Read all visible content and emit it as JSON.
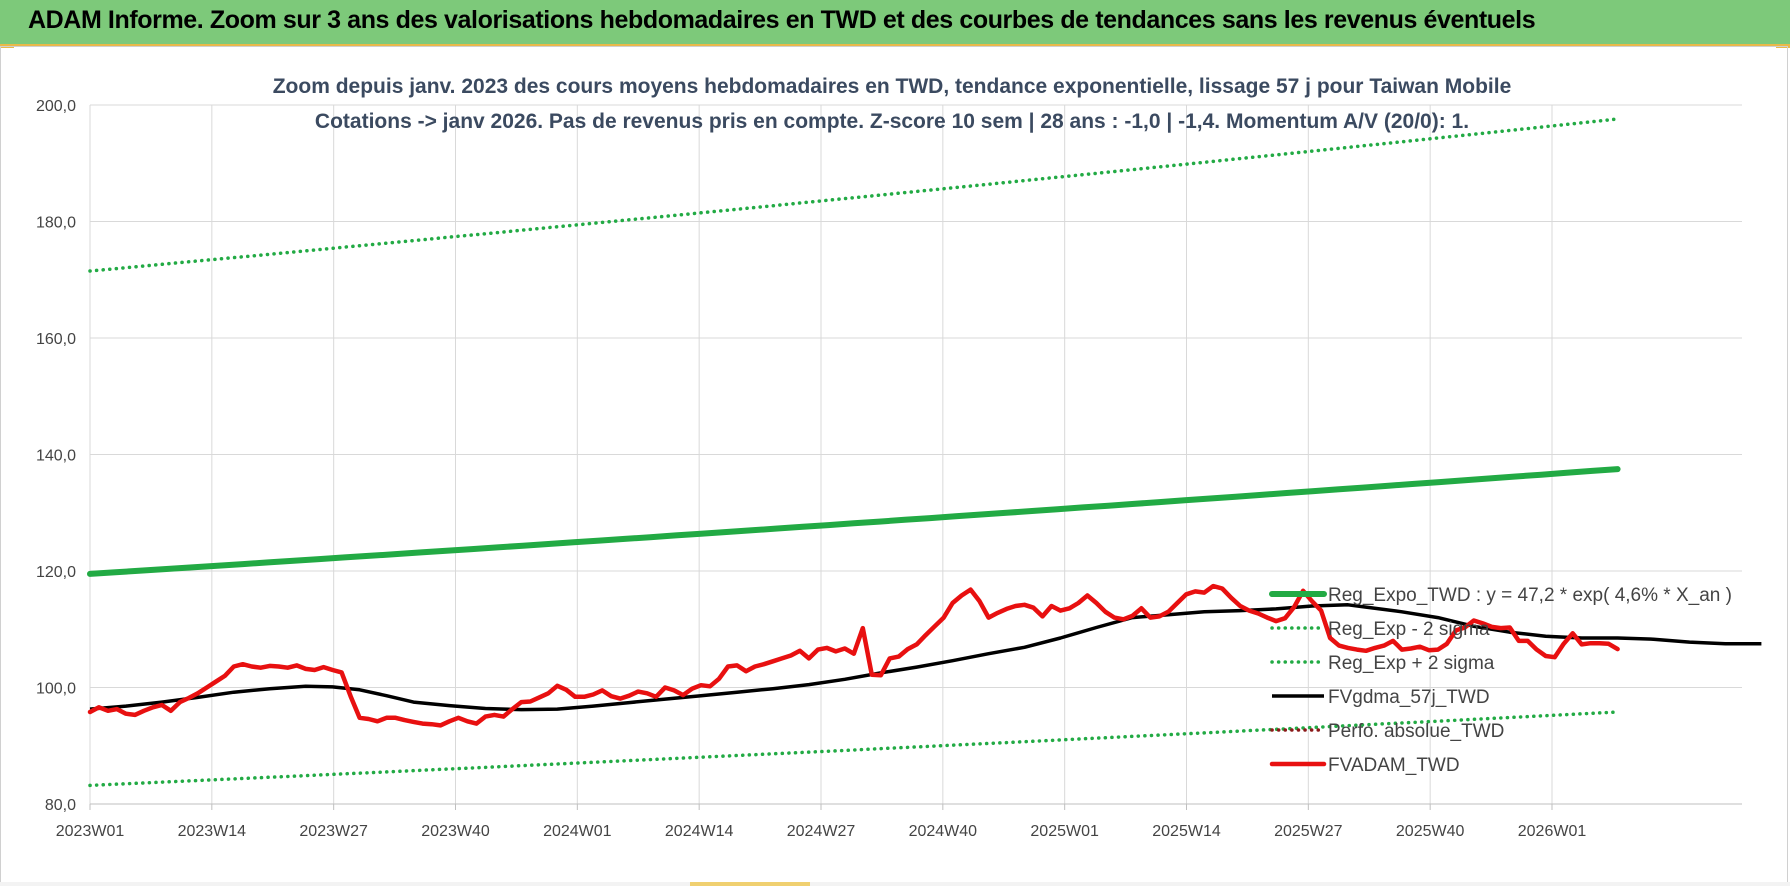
{
  "header": {
    "title": "ADAM Informe. Zoom sur 3 ans des valorisations hebdomadaires en TWD et des courbes de tendances sans les revenus éventuels"
  },
  "chart_data": {
    "type": "line",
    "title_lines": [
      "Zoom depuis janv. 2023 des cours moyens hebdomadaires en TWD, tendance exponentielle, lissage 57 j pour Taiwan Mobile",
      "Cotations -> janv 2026. Pas de revenus pris en compte. Z-score 10 sem | 28 ans : -1,0 | -1,4. Momentum A/V (20/0): 1."
    ],
    "xlabel": "",
    "ylabel": "",
    "ylim": [
      80,
      200
    ],
    "y_ticks": [
      "80,0",
      "100,0",
      "120,0",
      "140,0",
      "160,0",
      "180,0",
      "200,0"
    ],
    "x_ticks": [
      "2023W01",
      "2023W14",
      "2023W27",
      "2023W40",
      "2024W01",
      "2024W14",
      "2024W27",
      "2024W40",
      "2025W01",
      "2025W14",
      "2025W27",
      "2025W40",
      "2026W01"
    ],
    "x_range_weeks": [
      0,
      163
    ],
    "grid": true,
    "legend_position": "right",
    "series": [
      {
        "name": "Reg_Expo_TWD : y = 47,2 * exp( 4,6% *  X_an )",
        "color": "#22aa44",
        "style": "solid-thick",
        "trend": {
          "start": 119.5,
          "end": 137.5
        }
      },
      {
        "name": "Reg_Exp - 2 sigma",
        "color": "#22aa44",
        "style": "dotted",
        "trend": {
          "start": 83.2,
          "end": 95.8
        }
      },
      {
        "name": "Reg_Exp + 2 sigma",
        "color": "#22aa44",
        "style": "dotted",
        "trend": {
          "start": 171.5,
          "end": 197.6
        }
      },
      {
        "name": "FVgdma_57j_TWD",
        "color": "#000000",
        "style": "solid",
        "points": [
          [
            0,
            96.3
          ],
          [
            4,
            96.8
          ],
          [
            8,
            97.5
          ],
          [
            12,
            98.3
          ],
          [
            16,
            99.2
          ],
          [
            20,
            99.8
          ],
          [
            24,
            100.2
          ],
          [
            27,
            100.1
          ],
          [
            30,
            99.6
          ],
          [
            33,
            98.6
          ],
          [
            36,
            97.5
          ],
          [
            40,
            96.9
          ],
          [
            44,
            96.4
          ],
          [
            48,
            96.2
          ],
          [
            52,
            96.3
          ],
          [
            56,
            96.8
          ],
          [
            60,
            97.4
          ],
          [
            64,
            98.0
          ],
          [
            68,
            98.6
          ],
          [
            72,
            99.2
          ],
          [
            76,
            99.8
          ],
          [
            80,
            100.5
          ],
          [
            84,
            101.4
          ],
          [
            88,
            102.5
          ],
          [
            92,
            103.5
          ],
          [
            96,
            104.6
          ],
          [
            100,
            105.8
          ],
          [
            104,
            106.9
          ],
          [
            108,
            108.5
          ],
          [
            112,
            110.3
          ],
          [
            116,
            112.0
          ],
          [
            120,
            112.5
          ],
          [
            124,
            113.0
          ],
          [
            128,
            113.2
          ],
          [
            132,
            113.5
          ],
          [
            136,
            114.0
          ],
          [
            140,
            114.2
          ],
          [
            142,
            113.8
          ],
          [
            146,
            113.0
          ],
          [
            150,
            112.0
          ],
          [
            154,
            110.5
          ],
          [
            158,
            109.5
          ],
          [
            162,
            108.8
          ],
          [
            166,
            108.5
          ],
          [
            170,
            108.5
          ],
          [
            174,
            108.3
          ],
          [
            178,
            107.8
          ],
          [
            182,
            107.5
          ],
          [
            186,
            107.5
          ]
        ]
      },
      {
        "name": "Perfo. absolue_TWD",
        "color": "#8b1a1a",
        "style": "dotted",
        "points": []
      },
      {
        "name": "FVADAM_TWD",
        "color": "#e81010",
        "style": "solid-thick",
        "points": [
          [
            0,
            95.8
          ],
          [
            1,
            96.6
          ],
          [
            2,
            96.0
          ],
          [
            3,
            96.3
          ],
          [
            4,
            95.5
          ],
          [
            5,
            95.3
          ],
          [
            6,
            96.0
          ],
          [
            7,
            96.6
          ],
          [
            8,
            97.0
          ],
          [
            9,
            96.0
          ],
          [
            10,
            97.5
          ],
          [
            11,
            98.2
          ],
          [
            12,
            99.0
          ],
          [
            13,
            100.0
          ],
          [
            14,
            101.0
          ],
          [
            15,
            102.0
          ],
          [
            16,
            103.6
          ],
          [
            17,
            104.0
          ],
          [
            18,
            103.6
          ],
          [
            19,
            103.4
          ],
          [
            20,
            103.7
          ],
          [
            21,
            103.6
          ],
          [
            22,
            103.4
          ],
          [
            23,
            103.8
          ],
          [
            24,
            103.2
          ],
          [
            25,
            103.0
          ],
          [
            26,
            103.5
          ],
          [
            27,
            103.0
          ],
          [
            28,
            102.6
          ],
          [
            29,
            98.5
          ],
          [
            30,
            94.8
          ],
          [
            31,
            94.6
          ],
          [
            32,
            94.2
          ],
          [
            33,
            94.8
          ],
          [
            34,
            94.8
          ],
          [
            35,
            94.4
          ],
          [
            36,
            94.1
          ],
          [
            37,
            93.8
          ],
          [
            38,
            93.7
          ],
          [
            39,
            93.5
          ],
          [
            40,
            94.2
          ],
          [
            41,
            94.8
          ],
          [
            42,
            94.2
          ],
          [
            43,
            93.8
          ],
          [
            44,
            95.0
          ],
          [
            45,
            95.3
          ],
          [
            46,
            95.0
          ],
          [
            47,
            96.3
          ],
          [
            48,
            97.5
          ],
          [
            49,
            97.6
          ],
          [
            50,
            98.3
          ],
          [
            51,
            99.0
          ],
          [
            52,
            100.3
          ],
          [
            53,
            99.6
          ],
          [
            54,
            98.4
          ],
          [
            55,
            98.4
          ],
          [
            56,
            98.8
          ],
          [
            57,
            99.5
          ],
          [
            58,
            98.5
          ],
          [
            59,
            98.1
          ],
          [
            60,
            98.6
          ],
          [
            61,
            99.3
          ],
          [
            62,
            99.0
          ],
          [
            63,
            98.4
          ],
          [
            64,
            100.0
          ],
          [
            65,
            99.5
          ],
          [
            66,
            98.7
          ],
          [
            67,
            99.8
          ],
          [
            68,
            100.4
          ],
          [
            69,
            100.2
          ],
          [
            70,
            101.5
          ],
          [
            71,
            103.6
          ],
          [
            72,
            103.8
          ],
          [
            73,
            102.8
          ],
          [
            74,
            103.6
          ],
          [
            75,
            104.0
          ],
          [
            76,
            104.5
          ],
          [
            77,
            105.0
          ],
          [
            78,
            105.5
          ],
          [
            79,
            106.3
          ],
          [
            80,
            105.0
          ],
          [
            81,
            106.5
          ],
          [
            82,
            106.8
          ],
          [
            83,
            106.2
          ],
          [
            84,
            106.7
          ],
          [
            85,
            105.8
          ],
          [
            86,
            110.2
          ],
          [
            87,
            102.2
          ],
          [
            88,
            102.1
          ],
          [
            89,
            105.0
          ],
          [
            90,
            105.3
          ],
          [
            91,
            106.6
          ],
          [
            92,
            107.4
          ],
          [
            93,
            109.0
          ],
          [
            94,
            110.5
          ],
          [
            95,
            112.0
          ],
          [
            96,
            114.5
          ],
          [
            97,
            115.8
          ],
          [
            98,
            116.8
          ],
          [
            99,
            114.8
          ],
          [
            100,
            112.0
          ],
          [
            101,
            112.8
          ],
          [
            102,
            113.5
          ],
          [
            103,
            114.0
          ],
          [
            104,
            114.2
          ],
          [
            105,
            113.7
          ],
          [
            106,
            112.2
          ],
          [
            107,
            114.0
          ],
          [
            108,
            113.2
          ],
          [
            109,
            113.6
          ],
          [
            110,
            114.5
          ],
          [
            111,
            115.8
          ],
          [
            112,
            114.5
          ],
          [
            113,
            113.0
          ],
          [
            114,
            112.0
          ],
          [
            115,
            111.7
          ],
          [
            116,
            112.3
          ],
          [
            117,
            113.6
          ],
          [
            118,
            112.0
          ],
          [
            119,
            112.2
          ],
          [
            120,
            113.0
          ],
          [
            121,
            114.5
          ],
          [
            122,
            116.0
          ],
          [
            123,
            116.5
          ],
          [
            124,
            116.3
          ],
          [
            125,
            117.4
          ],
          [
            126,
            117.0
          ],
          [
            127,
            115.4
          ],
          [
            128,
            114.0
          ],
          [
            129,
            113.2
          ],
          [
            130,
            112.7
          ],
          [
            131,
            112.0
          ],
          [
            132,
            111.4
          ],
          [
            133,
            111.9
          ],
          [
            134,
            113.8
          ],
          [
            135,
            116.6
          ],
          [
            136,
            114.8
          ],
          [
            137,
            113.2
          ],
          [
            138,
            108.5
          ],
          [
            139,
            107.2
          ],
          [
            140,
            106.8
          ],
          [
            141,
            106.5
          ],
          [
            142,
            106.3
          ],
          [
            143,
            106.8
          ],
          [
            144,
            107.2
          ],
          [
            145,
            108.0
          ],
          [
            146,
            106.5
          ],
          [
            147,
            106.7
          ],
          [
            148,
            107.0
          ],
          [
            149,
            106.4
          ],
          [
            150,
            106.5
          ],
          [
            151,
            107.5
          ],
          [
            152,
            109.8
          ],
          [
            153,
            110.3
          ],
          [
            154,
            111.5
          ],
          [
            155,
            111.0
          ],
          [
            156,
            110.4
          ],
          [
            157,
            110.2
          ],
          [
            158,
            110.3
          ],
          [
            159,
            108.0
          ],
          [
            160,
            108.0
          ],
          [
            161,
            106.5
          ],
          [
            162,
            105.4
          ],
          [
            163,
            105.2
          ],
          [
            164,
            107.5
          ],
          [
            165,
            109.3
          ],
          [
            166,
            107.4
          ],
          [
            167,
            107.6
          ],
          [
            168,
            107.6
          ],
          [
            169,
            107.5
          ],
          [
            170,
            106.6
          ]
        ]
      }
    ]
  }
}
